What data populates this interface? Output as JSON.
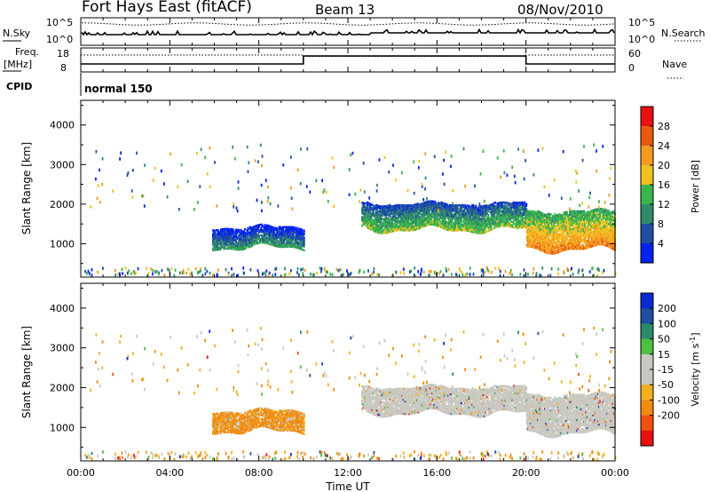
{
  "header": {
    "title": "Fort Hays East (fitACF)",
    "beam": "Beam 13",
    "date": "08/Nov/2010"
  },
  "top_panels": {
    "nsky_label": "N.Sky",
    "nsearch_label": "N.Search",
    "nsky_ticks": [
      "10^5",
      "10^0"
    ],
    "nsearch_ticks": [
      "10^5",
      "10^0"
    ],
    "freq_label": "Freq.",
    "freq_unit": "[MHz]",
    "freq_ticks": [
      "18",
      "8"
    ],
    "nave_label": "Nave",
    "nave_ticks": [
      "60",
      "0"
    ],
    "cpid_label": "CPID",
    "cpid_value": "normal 150"
  },
  "colors": {
    "power": [
      "#0022ee",
      "#1f4fa0",
      "#2f8a6a",
      "#39b54a",
      "#f0c020",
      "#f39a1f",
      "#e85a10",
      "#e81010"
    ],
    "velocity": [
      "#e81010",
      "#f05010",
      "#f08a10",
      "#f0b020",
      "#c8c8c0",
      "#c8c8c0",
      "#4cc040",
      "#2a8a6a",
      "#1f4fa0",
      "#0b2ad0"
    ]
  },
  "chart_data": [
    {
      "type": "heatmap",
      "title": "Power",
      "xlabel": "",
      "ylabel": "Slant Range [km]",
      "xlim": [
        "00:00",
        "24:00"
      ],
      "ylim": [
        180,
        4600
      ],
      "yticks": [
        "1000",
        "2000",
        "3000",
        "4000"
      ],
      "xticks": [
        "00:00",
        "04:00",
        "08:00",
        "12:00",
        "16:00",
        "20:00",
        "00:00"
      ],
      "colorbar_label": "Power [dB]",
      "colorbar_ticks": [
        "4",
        "8",
        "12",
        "16",
        "20",
        "24",
        "28"
      ],
      "colorbar_range": [
        0,
        32
      ],
      "regions": [
        {
          "t_start": 5.9,
          "t_end": 10.0,
          "r_lo": 900,
          "r_hi": 1400,
          "power": 8
        },
        {
          "t_start": 12.6,
          "t_end": 20.0,
          "r_lo": 1350,
          "r_hi": 2000,
          "power": 14
        },
        {
          "t_start": 20.0,
          "t_end": 24.0,
          "r_lo": 850,
          "r_hi": 1800,
          "power": 20
        }
      ]
    },
    {
      "type": "heatmap",
      "title": "Velocity",
      "xlabel": "Time UT",
      "ylabel": "Slant Range [km]",
      "xlim": [
        "00:00",
        "24:00"
      ],
      "ylim": [
        180,
        4600
      ],
      "yticks": [
        "1000",
        "2000",
        "3000",
        "4000"
      ],
      "xticks": [
        "00:00",
        "04:00",
        "08:00",
        "12:00",
        "16:00",
        "20:00",
        "00:00"
      ],
      "colorbar_label": "Velocity [m s^-1]",
      "colorbar_ticks": [
        "200",
        "100",
        "50",
        "15",
        "-15",
        "-50",
        "-100",
        "-200"
      ],
      "regions": [
        {
          "t_start": 5.9,
          "t_end": 10.0,
          "r_lo": 900,
          "r_hi": 1400,
          "velocity": -50
        },
        {
          "t_start": 12.6,
          "t_end": 20.0,
          "r_lo": 1300,
          "r_hi": 2000,
          "velocity": 0
        },
        {
          "t_start": 20.0,
          "t_end": 24.0,
          "r_lo": 850,
          "r_hi": 1800,
          "velocity": 0
        }
      ]
    }
  ]
}
